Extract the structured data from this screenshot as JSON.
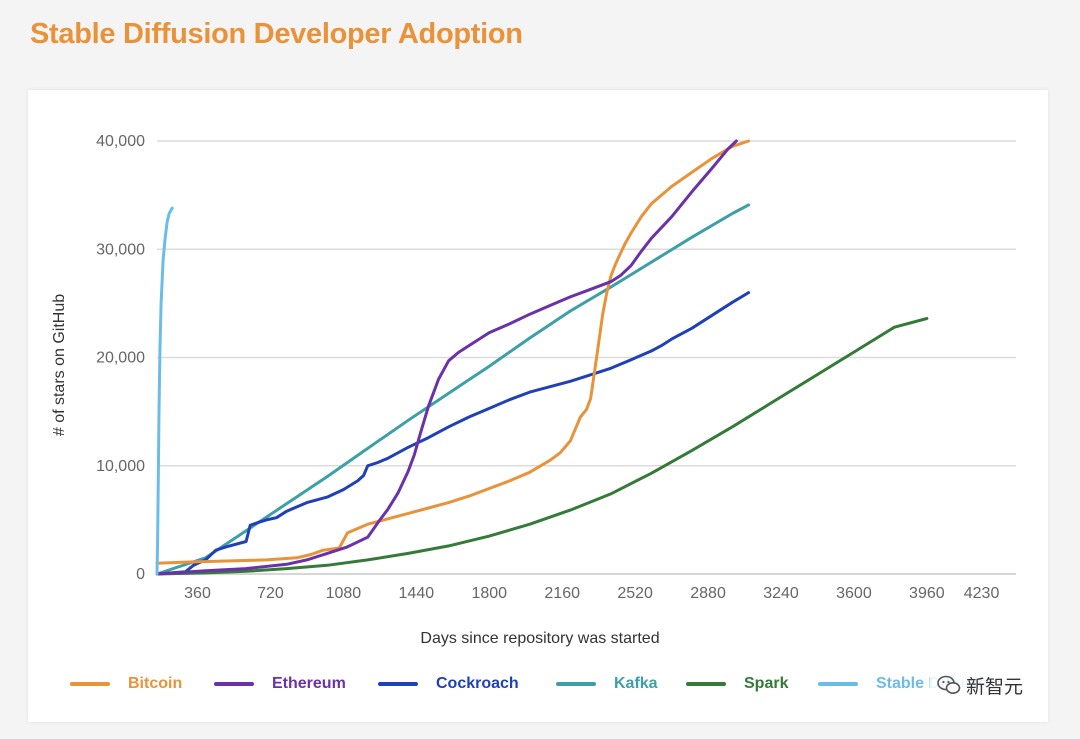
{
  "chart_data": {
    "type": "line",
    "title": "Stable Diffusion Developer Adoption",
    "xlabel": "Days since repository was started",
    "ylabel": "# of stars on GitHub",
    "xlim": [
      160,
      4400
    ],
    "ylim": [
      0,
      40000
    ],
    "xticks": [
      "360",
      "720",
      "1080",
      "1440",
      "1800",
      "2160",
      "2520",
      "2880",
      "3240",
      "3600",
      "3960",
      "4230"
    ],
    "xtick_values": [
      360,
      720,
      1080,
      1440,
      1800,
      2160,
      2520,
      2880,
      3240,
      3600,
      3960,
      4230
    ],
    "yticks": [
      "0",
      "10,000",
      "20,000",
      "30,000",
      "40,000"
    ],
    "ytick_values": [
      0,
      10000,
      20000,
      30000,
      40000
    ],
    "grid": true,
    "legend_position": "bottom",
    "series": [
      {
        "name": "Bitcoin",
        "color": "#e8923a",
        "x": [
          160,
          300,
          500,
          700,
          850,
          920,
          980,
          1060,
          1100,
          1200,
          1300,
          1400,
          1500,
          1600,
          1700,
          1800,
          1900,
          2000,
          2100,
          2150,
          2200,
          2250,
          2280,
          2300,
          2330,
          2360,
          2380,
          2400,
          2420,
          2440,
          2470,
          2500,
          2550,
          2600,
          2700,
          2800,
          2900,
          3000,
          3080
        ],
        "y": [
          1000,
          1100,
          1200,
          1300,
          1500,
          1800,
          2200,
          2400,
          3800,
          4600,
          5100,
          5600,
          6100,
          6600,
          7200,
          7900,
          8600,
          9400,
          10500,
          11200,
          12300,
          14500,
          15200,
          16200,
          20000,
          24000,
          26000,
          27500,
          28500,
          29300,
          30500,
          31500,
          33000,
          34200,
          35800,
          37100,
          38400,
          39500,
          40000
        ]
      },
      {
        "name": "Ethereum",
        "color": "#6a32a8",
        "x": [
          160,
          400,
          600,
          800,
          900,
          1000,
          1100,
          1200,
          1260,
          1300,
          1350,
          1400,
          1430,
          1460,
          1500,
          1550,
          1600,
          1650,
          1700,
          1800,
          1900,
          2000,
          2100,
          2200,
          2300,
          2400,
          2450,
          2500,
          2550,
          2600,
          2700,
          2800,
          2900,
          2980,
          3020
        ],
        "y": [
          0,
          300,
          500,
          900,
          1300,
          1900,
          2500,
          3400,
          5000,
          6000,
          7500,
          9500,
          11000,
          13000,
          15500,
          18000,
          19700,
          20500,
          21100,
          22300,
          23100,
          24000,
          24800,
          25600,
          26300,
          27000,
          27600,
          28500,
          29800,
          31000,
          33000,
          35300,
          37500,
          39300,
          40000
        ]
      },
      {
        "name": "Cockroach",
        "color": "#2040b8",
        "x": [
          160,
          300,
          340,
          400,
          450,
          500,
          600,
          620,
          650,
          700,
          750,
          800,
          900,
          1000,
          1080,
          1150,
          1180,
          1200,
          1250,
          1300,
          1400,
          1500,
          1600,
          1700,
          1800,
          1900,
          2000,
          2100,
          2200,
          2300,
          2400,
          2500,
          2600,
          2650,
          2700,
          2800,
          2900,
          3000,
          3080
        ],
        "y": [
          0,
          200,
          800,
          1300,
          2200,
          2500,
          3000,
          4500,
          4700,
          5000,
          5200,
          5800,
          6600,
          7100,
          7800,
          8600,
          9100,
          10000,
          10300,
          10700,
          11700,
          12600,
          13600,
          14500,
          15300,
          16100,
          16800,
          17300,
          17800,
          18400,
          19000,
          19800,
          20600,
          21100,
          21700,
          22700,
          23900,
          25100,
          26000
        ]
      },
      {
        "name": "Kafka",
        "color": "#3da0a8",
        "x": [
          160,
          400,
          600,
          800,
          1000,
          1200,
          1400,
          1600,
          1800,
          2000,
          2200,
          2400,
          2600,
          2800,
          3000,
          3080
        ],
        "y": [
          0,
          1500,
          4000,
          6500,
          9000,
          11600,
          14200,
          16700,
          19200,
          21800,
          24300,
          26500,
          28800,
          31100,
          33300,
          34100
        ]
      },
      {
        "name": "Spark",
        "color": "#357a38",
        "x": [
          160,
          400,
          600,
          800,
          1000,
          1200,
          1400,
          1600,
          1800,
          2000,
          2200,
          2400,
          2600,
          2800,
          3000,
          3200,
          3400,
          3600,
          3800,
          3960
        ],
        "y": [
          0,
          100,
          250,
          500,
          800,
          1300,
          1900,
          2600,
          3500,
          4600,
          5900,
          7400,
          9300,
          11400,
          13600,
          15900,
          18200,
          20500,
          22800,
          23600
        ]
      },
      {
        "name": "Stable Diffusion",
        "color": "#6bbde8",
        "x": [
          160,
          163,
          166,
          170,
          175,
          180,
          190,
          200,
          210,
          220,
          235
        ],
        "y": [
          0,
          3000,
          8000,
          15000,
          21000,
          25000,
          29000,
          31000,
          32500,
          33300,
          33800
        ]
      }
    ]
  },
  "legend": {
    "items": [
      {
        "label": "Bitcoin",
        "color": "#e8923a"
      },
      {
        "label": "Ethereum",
        "color": "#6a32a8"
      },
      {
        "label": "Cockroach",
        "color": "#2040b8"
      },
      {
        "label": "Kafka",
        "color": "#3da0a8"
      },
      {
        "label": "Spark",
        "color": "#357a38"
      },
      {
        "label": "Stable Diffusion",
        "color": "#6bbde8"
      }
    ]
  },
  "watermark": {
    "text": "新智元",
    "icon": "wechat-icon"
  }
}
